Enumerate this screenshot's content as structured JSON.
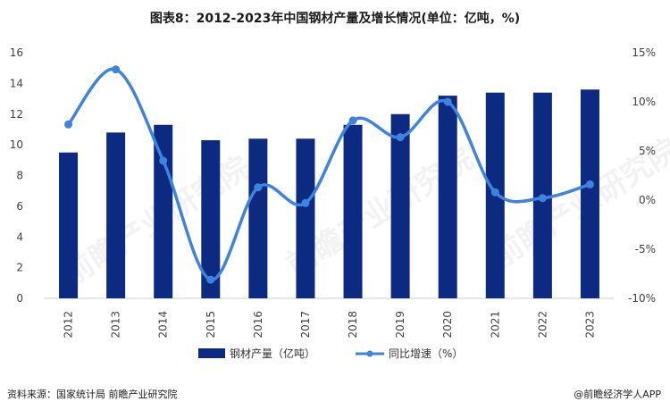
{
  "title": "图表8：2012-2023年中国钢材产量及增长情况(单位：亿吨，%)",
  "source": "资料来源：国家统计局 前瞻产业研究院",
  "brand": "@前瞻经济学人APP",
  "watermark": "前瞻产业研究院",
  "colors": {
    "bar": "#0d2a82",
    "line": "#3f83e0",
    "axis": "#cfcfcf",
    "text": "#404040"
  },
  "chart_data": {
    "type": "bar+line",
    "categories": [
      "2012",
      "2013",
      "2014",
      "2015",
      "2016",
      "2017",
      "2018",
      "2019",
      "2020",
      "2021",
      "2022",
      "2023"
    ],
    "series": [
      {
        "name": "钢材产量（亿吨）",
        "type": "bar",
        "axis": "left",
        "values": [
          9.5,
          10.8,
          11.3,
          10.3,
          10.4,
          10.4,
          11.3,
          12.0,
          13.2,
          13.4,
          13.4,
          13.6
        ]
      },
      {
        "name": "同比增速（%）",
        "type": "line",
        "axis": "right",
        "values": [
          7.7,
          13.3,
          4.0,
          -8.1,
          1.3,
          -0.3,
          8.1,
          6.4,
          10.0,
          0.8,
          0.2,
          1.6
        ]
      }
    ],
    "ylim_left": [
      0,
      16
    ],
    "yticks_left": [
      0,
      2,
      4,
      6,
      8,
      10,
      12,
      14,
      16
    ],
    "ylim_right": [
      -10,
      15
    ],
    "yticks_right": [
      "-10%",
      "-5%",
      "0%",
      "5%",
      "10%",
      "15%"
    ],
    "yticks_right_values": [
      -10,
      -5,
      0,
      5,
      10,
      15
    ],
    "legend": [
      "钢材产量（亿吨）",
      "同比增速（%）"
    ]
  }
}
